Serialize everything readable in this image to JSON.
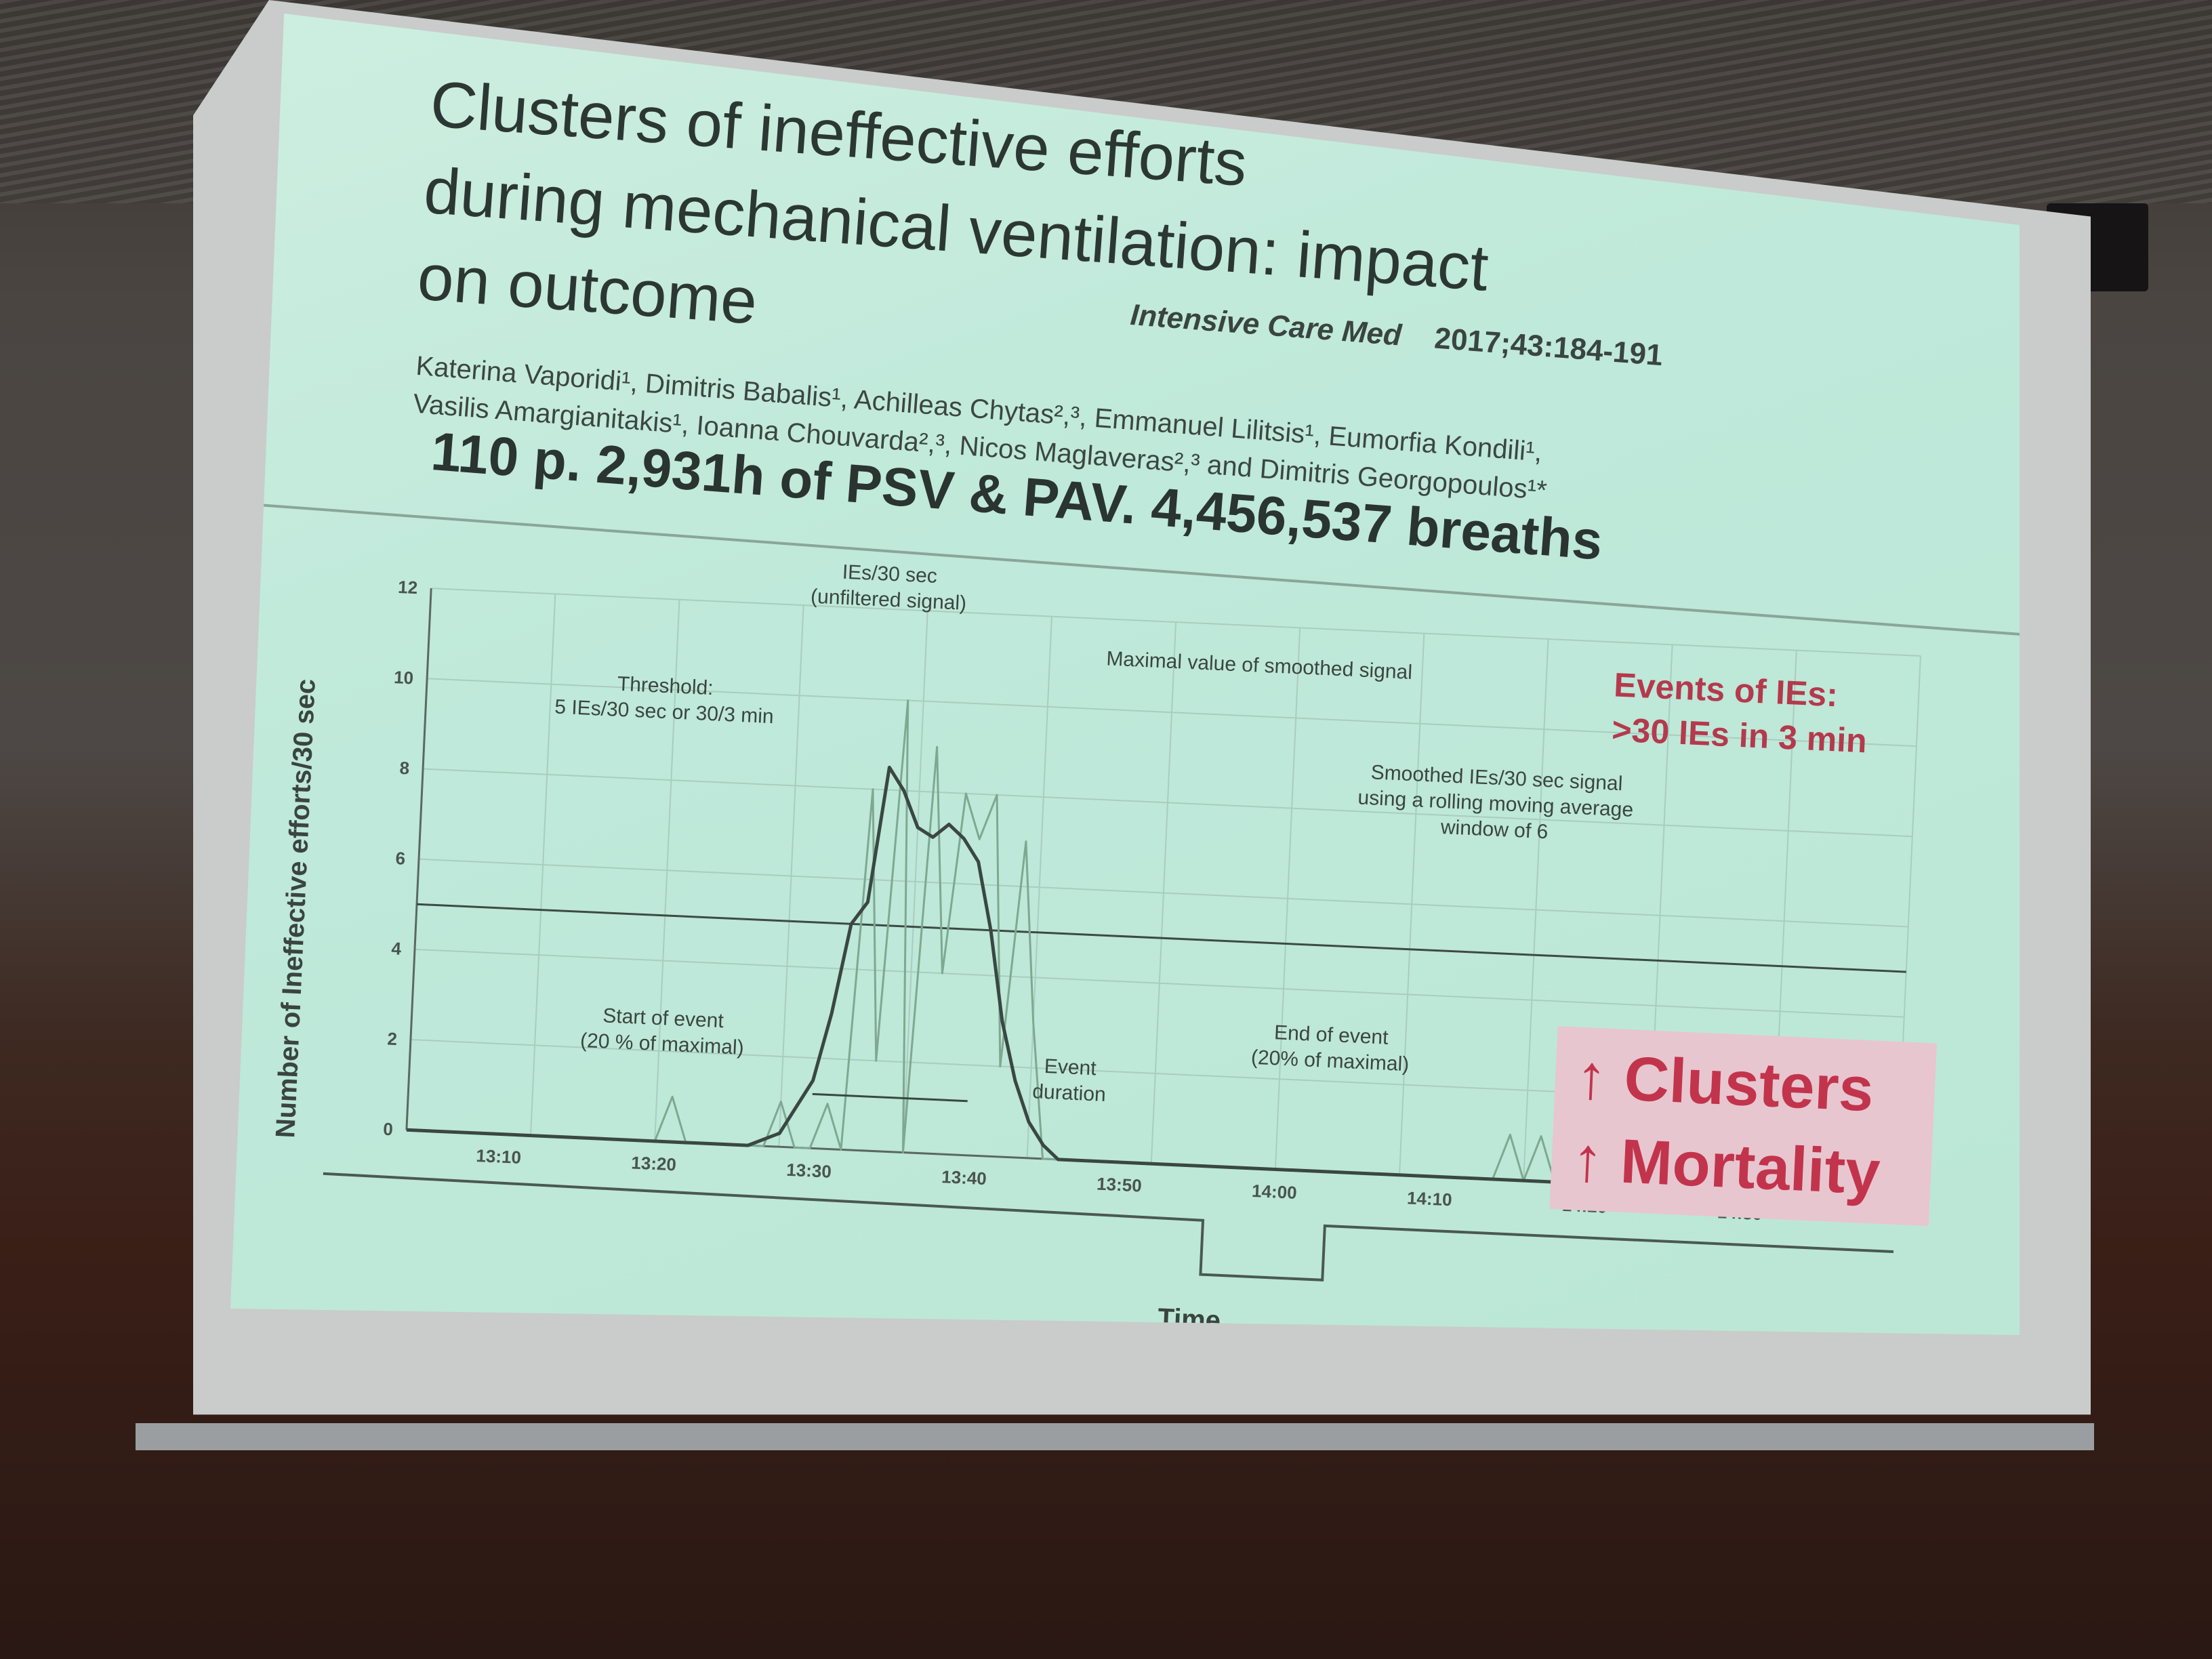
{
  "slide": {
    "title_lines": [
      "Clusters of ineffective efforts",
      "during mechanical ventilation: impact",
      "on outcome"
    ],
    "journal_name": "Intensive Care Med",
    "journal_ref": "2017;43:184-191",
    "authors_line1": "Katerina Vaporidi¹, Dimitris Babalis¹, Achilleas Chytas²,³, Emmanuel Lilitsis¹, Eumorfia Kondili¹,",
    "authors_line2": "Vasilis Amargianitakis¹, Ioanna Chouvarda²,³, Nicos Maglaveras²,³ and Dimitris Georgopoulos¹*",
    "headline": "110 p. 2,931h of PSV & PAV. 4,456,537 breaths",
    "events_line1": "Events of IEs:",
    "events_line2": ">30 IEs in 3 min",
    "clusters_line1": "↑ Clusters",
    "clusters_line2": "↑ Mortality"
  },
  "annotations": {
    "ies_label_1": "IEs/30 sec",
    "ies_label_2": "(unfiltered signal)",
    "maximal": "Maximal value of smoothed signal",
    "threshold_1": "Threshold:",
    "threshold_2": "5 IEs/30 sec or 30/3 min",
    "smoothed_1": "Smoothed IEs/30 sec signal",
    "smoothed_2": "using a rolling moving average",
    "smoothed_3": "window of 6",
    "start_1": "Start of event",
    "start_2": "(20 % of maximal)",
    "event_1": "Event",
    "event_2": "duration",
    "end_1": "End of event",
    "end_2": "(20% of maximal)"
  },
  "chart_data": {
    "type": "line",
    "xlabel": "Time",
    "ylabel": "Number of Ineffective efforts/30 sec",
    "x_ticks": [
      "13:10",
      "13:20",
      "13:30",
      "13:40",
      "13:50",
      "14:00",
      "14:10",
      "14:20",
      "14:30"
    ],
    "y_ticks": [
      "0",
      "2",
      "4",
      "6",
      "8",
      "10",
      "12"
    ],
    "ylim": [
      0,
      12
    ],
    "threshold": 5,
    "series": [
      {
        "name": "IEs/30 sec (unfiltered signal)",
        "x": [
          0,
          2,
          3,
          4,
          6,
          7,
          8,
          10,
          12,
          13,
          14,
          15,
          16,
          17,
          18,
          19,
          20,
          21,
          22,
          23,
          24,
          25,
          26,
          27,
          28,
          29,
          30,
          31,
          32,
          33,
          34,
          35,
          36,
          37,
          38,
          39,
          40,
          41,
          42,
          43,
          44,
          45,
          46,
          47,
          48,
          50,
          52,
          54,
          56,
          58,
          60,
          62,
          64,
          66,
          68,
          70,
          71,
          72,
          73,
          74,
          75,
          76,
          77,
          78,
          79,
          80,
          81,
          82,
          83,
          84,
          85,
          86,
          88,
          90,
          92,
          94,
          96
        ],
        "values": [
          0,
          0,
          0,
          0,
          0,
          0,
          0,
          0,
          0,
          0,
          0,
          0,
          0,
          1,
          0,
          0,
          0,
          0,
          0,
          0,
          1,
          0,
          0,
          1,
          0,
          8,
          2,
          10,
          0,
          9,
          4,
          8,
          7,
          8,
          2,
          7,
          3,
          0,
          0,
          0,
          0,
          0,
          0,
          0,
          0,
          0,
          0,
          0,
          0,
          0,
          0,
          0,
          0,
          0,
          0,
          0,
          1,
          0,
          1,
          0,
          0,
          2,
          1,
          0,
          1,
          0,
          0,
          0,
          0,
          0,
          0,
          1,
          0,
          0,
          0,
          0,
          0
        ]
      },
      {
        "name": "Smoothed IEs/30 sec signal",
        "x": [
          0,
          10,
          20,
          22,
          24,
          26,
          27,
          28,
          29,
          30,
          31,
          32,
          33,
          34,
          35,
          36,
          37,
          38,
          39,
          40,
          41,
          42,
          44,
          50,
          60,
          70,
          80,
          90,
          96
        ],
        "values": [
          0,
          0,
          0,
          0,
          0.3,
          1.5,
          3,
          5,
          5.5,
          8.5,
          8,
          7.2,
          7,
          7.3,
          7,
          6.5,
          5,
          3,
          1.7,
          0.8,
          0.3,
          0,
          0,
          0,
          0,
          0,
          0,
          0,
          0
        ]
      }
    ]
  }
}
